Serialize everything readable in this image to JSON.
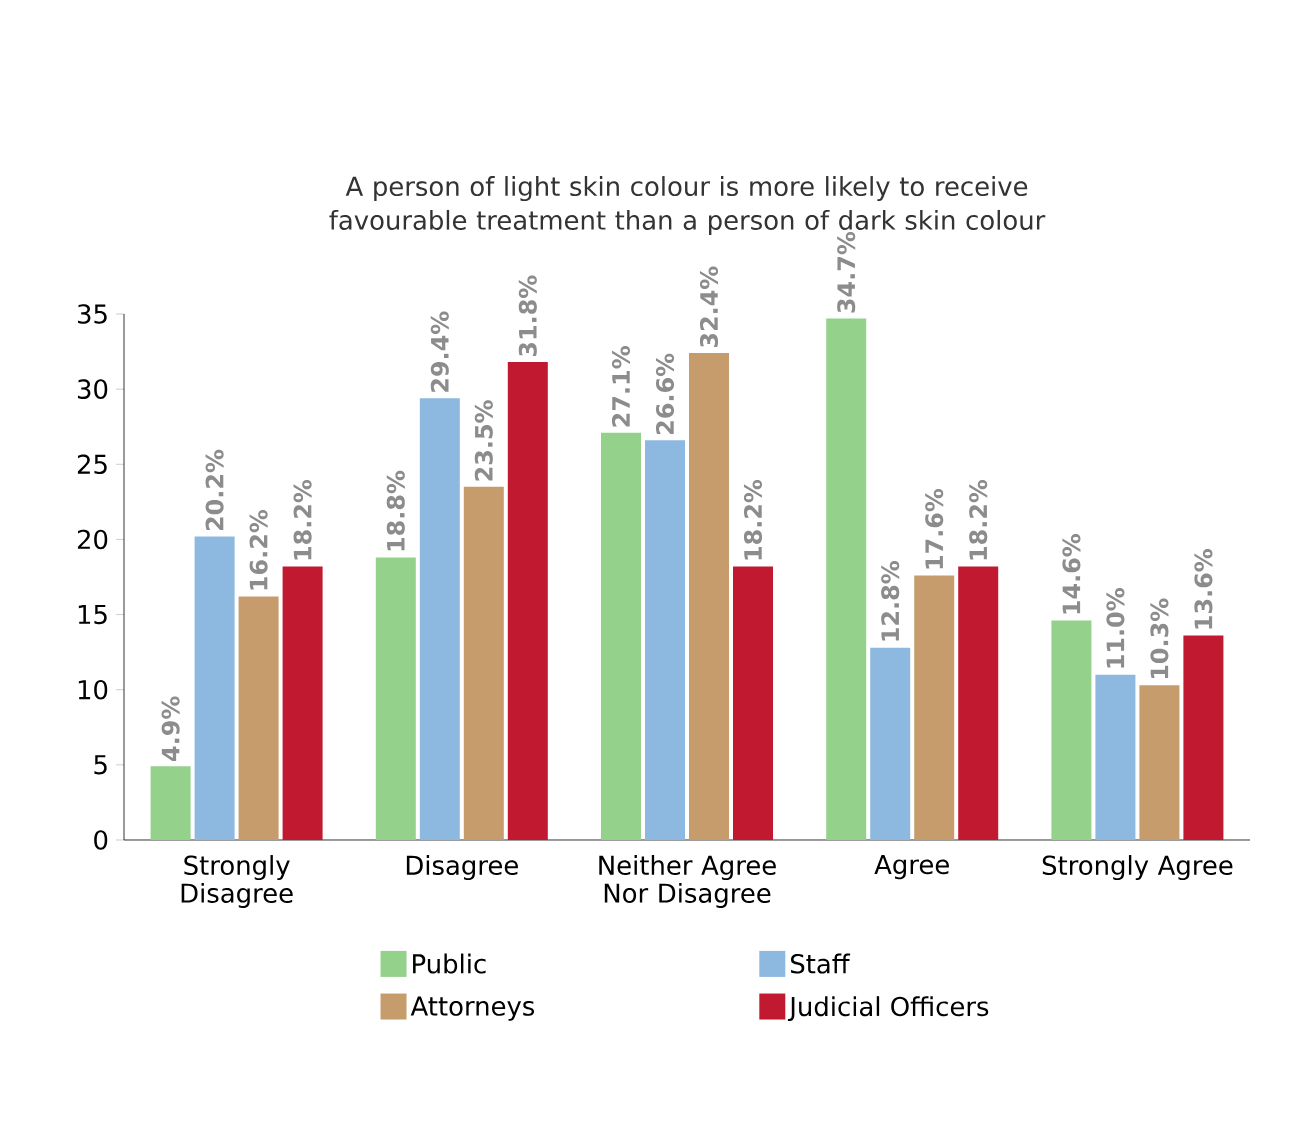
{
  "chart_data": {
    "type": "bar",
    "title": "A person of light skin colour is more likely to receive favourable treatment than a person of dark skin colour",
    "categories": [
      "Strongly Disagree",
      "Disagree",
      "Neither Agree Nor Disagree",
      "Agree",
      "Strongly Agree"
    ],
    "series": [
      {
        "name": "Public",
        "color": "#94d18b",
        "values": [
          4.9,
          18.8,
          27.1,
          34.7,
          14.6
        ],
        "value_labels": [
          "4.9%",
          "18.8%",
          "27.1%",
          "34.7%",
          "14.6%"
        ]
      },
      {
        "name": "Staff",
        "color": "#8db8e0",
        "values": [
          20.2,
          29.4,
          26.6,
          12.8,
          11.0
        ],
        "value_labels": [
          "20.2%",
          "29.4%",
          "26.6%",
          "12.8%",
          "11.0%"
        ]
      },
      {
        "name": "Attorneys",
        "color": "#c69c6d",
        "values": [
          16.2,
          23.5,
          32.4,
          17.6,
          10.3
        ],
        "value_labels": [
          "16.2%",
          "23.5%",
          "32.4%",
          "17.6%",
          "10.3%"
        ]
      },
      {
        "name": "Judicial Officers",
        "color": "#c1192f",
        "values": [
          18.2,
          31.8,
          18.2,
          18.2,
          13.6
        ],
        "value_labels": [
          "18.2%",
          "31.8%",
          "18.2%",
          "18.2%",
          "13.6%"
        ]
      }
    ],
    "ylim": [
      0,
      35
    ],
    "yticks": [
      0,
      5,
      10,
      15,
      20,
      25,
      30,
      35
    ],
    "grid": false,
    "legend": "bottom"
  }
}
